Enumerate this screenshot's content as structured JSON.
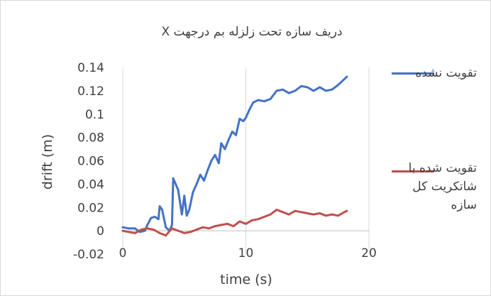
{
  "chart_data": {
    "type": "line",
    "title": "دریف سازه تحت زلزله بم  درجهت X",
    "xlabel": "time (s)",
    "ylabel": "drift (m)",
    "xlim": [
      0,
      20
    ],
    "ylim": [
      -0.02,
      0.14
    ],
    "x_ticks": [
      "0",
      "10",
      "20"
    ],
    "y_ticks": [
      "-0.02",
      "0",
      "0.02",
      "0.04",
      "0.06",
      "0.08",
      "0.1",
      "0.12",
      "0.14"
    ],
    "grid": "vertical",
    "legend_position": "right",
    "series": [
      {
        "name": "تقویت نشده",
        "color": "#4472C4",
        "x": [
          0,
          0.5,
          1,
          1.4,
          1.8,
          2.0,
          2.3,
          2.6,
          2.9,
          3.0,
          3.2,
          3.5,
          3.8,
          4.0,
          4.1,
          4.3,
          4.5,
          4.8,
          5.0,
          5.2,
          5.4,
          5.7,
          6.0,
          6.3,
          6.6,
          6.9,
          7.2,
          7.5,
          7.8,
          8.0,
          8.3,
          8.6,
          8.9,
          9.2,
          9.5,
          9.8,
          10.0,
          10.3,
          10.6,
          11.0,
          11.5,
          12.0,
          12.5,
          13.0,
          13.5,
          14.0,
          14.5,
          15.0,
          15.5,
          16.0,
          16.5,
          17.0,
          17.5,
          18.0,
          18.2
        ],
        "y": [
          0.003,
          0.002,
          0.002,
          -0.001,
          0.0,
          0.005,
          0.011,
          0.012,
          0.01,
          0.021,
          0.018,
          0.003,
          0.0,
          0.005,
          0.045,
          0.04,
          0.035,
          0.014,
          0.03,
          0.013,
          0.018,
          0.033,
          0.04,
          0.048,
          0.043,
          0.052,
          0.06,
          0.065,
          0.058,
          0.075,
          0.07,
          0.078,
          0.085,
          0.082,
          0.096,
          0.094,
          0.097,
          0.104,
          0.11,
          0.112,
          0.111,
          0.113,
          0.12,
          0.121,
          0.118,
          0.12,
          0.124,
          0.123,
          0.12,
          0.123,
          0.12,
          0.121,
          0.125,
          0.13,
          0.132
        ]
      },
      {
        "name": "تقویت شده با شاتکریت کل سازه",
        "color": "#C0504D",
        "x": [
          0,
          0.5,
          1,
          1.5,
          2.0,
          2.5,
          3.0,
          3.5,
          4.0,
          4.5,
          5.0,
          5.5,
          6.0,
          6.5,
          7.0,
          7.5,
          8.0,
          8.5,
          9.0,
          9.5,
          10.0,
          10.5,
          11.0,
          11.5,
          12.0,
          12.5,
          13.0,
          13.5,
          14.0,
          14.5,
          15.0,
          15.5,
          16.0,
          16.5,
          17.0,
          17.5,
          18.0,
          18.2
        ],
        "y": [
          0.0,
          -0.001,
          -0.002,
          0.001,
          0.002,
          0.001,
          -0.002,
          -0.004,
          0.002,
          0.0,
          -0.002,
          -0.001,
          0.001,
          0.003,
          0.002,
          0.004,
          0.005,
          0.006,
          0.004,
          0.008,
          0.006,
          0.009,
          0.01,
          0.012,
          0.014,
          0.018,
          0.016,
          0.014,
          0.017,
          0.016,
          0.015,
          0.014,
          0.015,
          0.013,
          0.014,
          0.013,
          0.016,
          0.017
        ]
      }
    ]
  }
}
